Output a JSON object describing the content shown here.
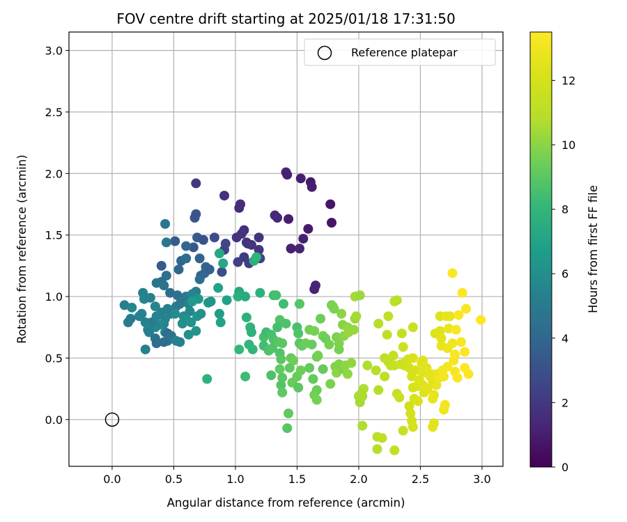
{
  "chart_data": {
    "type": "scatter",
    "title": "FOV centre drift starting at 2025/01/18 17:31:50",
    "xlabel": "Angular distance from reference (arcmin)",
    "ylabel": "Rotation from reference (arcmin)",
    "xlim": [
      -0.35,
      3.17
    ],
    "ylim": [
      -0.38,
      3.15
    ],
    "xticks": [
      "0.0",
      "0.5",
      "1.0",
      "1.5",
      "2.0",
      "2.5",
      "3.0"
    ],
    "yticks": [
      "0.0",
      "0.5",
      "1.0",
      "1.5",
      "2.0",
      "2.5",
      "3.0"
    ],
    "grid": true,
    "legend": {
      "placement": "top-right",
      "entries": [
        "Reference platepar"
      ]
    },
    "reference_point": {
      "x": 0.0,
      "y": 0.0
    },
    "colorbar": {
      "label": "Hours from first FF file",
      "range": [
        0,
        13.5
      ],
      "ticks": [
        "0",
        "2",
        "4",
        "6",
        "8",
        "10",
        "12"
      ],
      "colormap": "viridis"
    },
    "point_color_value": "hours",
    "points": [
      [
        1.41,
        2.01,
        1.2
      ],
      [
        1.42,
        1.99,
        1.1
      ],
      [
        1.53,
        1.96,
        1.0
      ],
      [
        1.61,
        1.93,
        0.9
      ],
      [
        1.62,
        1.89,
        1.0
      ],
      [
        1.77,
        1.75,
        0.7
      ],
      [
        1.78,
        1.6,
        0.7
      ],
      [
        1.43,
        1.63,
        1.0
      ],
      [
        1.59,
        1.55,
        0.9
      ],
      [
        1.55,
        1.47,
        1.1
      ],
      [
        1.45,
        1.39,
        1.1
      ],
      [
        1.52,
        1.39,
        1.2
      ],
      [
        1.65,
        1.09,
        1.3
      ],
      [
        1.64,
        1.06,
        1.2
      ],
      [
        1.32,
        1.66,
        1.4
      ],
      [
        1.34,
        1.64,
        1.4
      ],
      [
        1.03,
        1.72,
        1.5
      ],
      [
        1.04,
        1.75,
        1.6
      ],
      [
        1.07,
        1.54,
        1.6
      ],
      [
        1.05,
        1.51,
        1.7
      ],
      [
        1.01,
        1.48,
        1.8
      ],
      [
        1.09,
        1.44,
        1.9
      ],
      [
        1.19,
        1.48,
        1.8
      ],
      [
        1.1,
        1.43,
        1.7
      ],
      [
        1.13,
        1.42,
        1.9
      ],
      [
        1.19,
        1.38,
        2.0
      ],
      [
        1.07,
        1.32,
        2.1
      ],
      [
        1.02,
        1.28,
        2.3
      ],
      [
        1.11,
        1.27,
        2.2
      ],
      [
        1.2,
        1.31,
        2.4
      ],
      [
        0.91,
        1.82,
        1.7
      ],
      [
        0.68,
        1.92,
        2.0
      ],
      [
        0.92,
        1.43,
        2.6
      ],
      [
        0.91,
        1.38,
        2.5
      ],
      [
        0.83,
        1.48,
        2.9
      ],
      [
        0.89,
        1.2,
        2.9
      ],
      [
        0.68,
        1.67,
        3.3
      ],
      [
        0.67,
        1.64,
        3.2
      ],
      [
        0.69,
        1.48,
        3.6
      ],
      [
        0.51,
        1.45,
        3.5
      ],
      [
        0.74,
        1.46,
        3.1
      ],
      [
        0.66,
        1.4,
        3.3
      ],
      [
        0.6,
        1.41,
        4.1
      ],
      [
        0.56,
        1.29,
        3.9
      ],
      [
        0.71,
        1.31,
        3.8
      ],
      [
        0.6,
        1.31,
        4.3
      ],
      [
        0.54,
        1.22,
        4.0
      ],
      [
        0.76,
        1.24,
        3.9
      ],
      [
        0.72,
        1.17,
        3.6
      ],
      [
        0.71,
        1.14,
        4.4
      ],
      [
        0.75,
        1.19,
        4.1
      ],
      [
        0.79,
        1.22,
        3.7
      ],
      [
        0.43,
        1.59,
        4.8
      ],
      [
        0.44,
        1.44,
        4.9
      ],
      [
        0.4,
        1.25,
        3.4
      ],
      [
        0.44,
        1.17,
        4.4
      ],
      [
        0.4,
        1.12,
        4.3
      ],
      [
        0.42,
        1.09,
        4.6
      ],
      [
        0.36,
        1.11,
        4.6
      ],
      [
        0.47,
        1.03,
        4.4
      ],
      [
        0.53,
        1.01,
        4.5
      ],
      [
        0.6,
        1.0,
        4.7
      ],
      [
        0.63,
        1.0,
        5.1
      ],
      [
        0.68,
        1.04,
        5.2
      ],
      [
        0.65,
        1.02,
        5.4
      ],
      [
        0.56,
        0.96,
        4.9
      ],
      [
        0.52,
        0.92,
        5.1
      ],
      [
        0.55,
        0.94,
        4.9
      ],
      [
        0.62,
        0.94,
        5.2
      ],
      [
        0.63,
        0.88,
        5.6
      ],
      [
        0.48,
        0.86,
        5.2
      ],
      [
        0.4,
        0.87,
        5.3
      ],
      [
        0.45,
        0.9,
        5.3
      ],
      [
        0.43,
        0.82,
        5.4
      ],
      [
        0.36,
        0.84,
        5.5
      ],
      [
        0.42,
        0.78,
        5.5
      ],
      [
        0.38,
        0.77,
        5.7
      ],
      [
        0.35,
        0.75,
        5.6
      ],
      [
        0.43,
        0.71,
        5.4
      ],
      [
        0.45,
        0.7,
        4.2
      ],
      [
        0.48,
        0.68,
        4.6
      ],
      [
        0.45,
        0.64,
        4.8
      ],
      [
        0.52,
        0.64,
        5.4
      ],
      [
        0.55,
        0.63,
        5.3
      ],
      [
        0.35,
        0.66,
        4.5
      ],
      [
        0.36,
        0.62,
        4.3
      ],
      [
        0.42,
        0.63,
        4.3
      ],
      [
        0.27,
        0.57,
        5.3
      ],
      [
        0.32,
        0.79,
        5.1
      ],
      [
        0.27,
        0.79,
        5.3
      ],
      [
        0.29,
        0.73,
        5.5
      ],
      [
        0.3,
        0.71,
        5.2
      ],
      [
        0.22,
        0.84,
        5.3
      ],
      [
        0.24,
        0.86,
        5.4
      ],
      [
        0.13,
        0.79,
        5.1
      ],
      [
        0.15,
        0.82,
        5.1
      ],
      [
        0.1,
        0.93,
        5.2
      ],
      [
        0.16,
        0.91,
        5.6
      ],
      [
        0.25,
        1.03,
        5.4
      ],
      [
        0.26,
        0.98,
        5.5
      ],
      [
        0.31,
        0.99,
        5.3
      ],
      [
        0.35,
        0.92,
        5.6
      ],
      [
        0.51,
        0.86,
        5.9
      ],
      [
        0.58,
        0.84,
        5.9
      ],
      [
        0.6,
        0.82,
        6.1
      ],
      [
        0.57,
        0.78,
        6.0
      ],
      [
        0.64,
        0.79,
        6.2
      ],
      [
        0.69,
        0.84,
        6.3
      ],
      [
        0.72,
        0.86,
        6.1
      ],
      [
        0.62,
        0.69,
        6.1
      ],
      [
        0.68,
        0.72,
        6.3
      ],
      [
        0.7,
        0.98,
        6.4
      ],
      [
        0.65,
        0.96,
        6.5
      ],
      [
        0.78,
        0.95,
        6.4
      ],
      [
        0.8,
        0.96,
        6.3
      ],
      [
        0.87,
        0.86,
        6.7
      ],
      [
        0.88,
        0.79,
        7.0
      ],
      [
        0.93,
        0.97,
        6.9
      ],
      [
        0.86,
        1.07,
        7.0
      ],
      [
        0.9,
        1.27,
        7.2
      ],
      [
        0.87,
        1.35,
        7.3
      ],
      [
        1.03,
        1.04,
        7.3
      ],
      [
        1.02,
        1.0,
        7.6
      ],
      [
        1.08,
        1.0,
        7.4
      ],
      [
        0.77,
        0.33,
        7.8
      ],
      [
        1.09,
        0.83,
        7.7
      ],
      [
        1.12,
        0.75,
        7.9
      ],
      [
        1.13,
        0.71,
        7.8
      ],
      [
        1.11,
        0.61,
        8.0
      ],
      [
        1.14,
        0.57,
        8.0
      ],
      [
        1.03,
        0.57,
        8.1
      ],
      [
        1.08,
        0.35,
        8.3
      ],
      [
        1.15,
        1.29,
        7.6
      ],
      [
        1.17,
        1.32,
        7.9
      ],
      [
        1.2,
        1.03,
        7.7
      ],
      [
        1.23,
        0.67,
        8.5
      ],
      [
        1.25,
        0.71,
        8.3
      ],
      [
        1.29,
        0.69,
        8.6
      ],
      [
        1.23,
        0.6,
        8.4
      ],
      [
        1.27,
        0.56,
        8.7
      ],
      [
        1.31,
        0.65,
        8.6
      ],
      [
        1.3,
        0.58,
        8.8
      ],
      [
        1.29,
        0.36,
        8.7
      ],
      [
        1.31,
        1.01,
        8.3
      ],
      [
        1.33,
        1.01,
        8.5
      ],
      [
        1.36,
        0.81,
        8.8
      ],
      [
        1.41,
        0.78,
        8.7
      ],
      [
        1.34,
        0.75,
        8.5
      ],
      [
        1.35,
        0.63,
        8.9
      ],
      [
        1.38,
        0.62,
        9.0
      ],
      [
        1.36,
        0.54,
        8.8
      ],
      [
        1.37,
        0.49,
        9.0
      ],
      [
        1.36,
        0.41,
        9.2
      ],
      [
        1.38,
        0.34,
        9.0
      ],
      [
        1.37,
        0.28,
        8.9
      ],
      [
        1.38,
        0.22,
        9.1
      ],
      [
        1.39,
        0.94,
        8.4
      ],
      [
        1.44,
        0.42,
        9.1
      ],
      [
        1.45,
        0.5,
        9.2
      ],
      [
        1.47,
        0.48,
        9.4
      ],
      [
        1.43,
        0.05,
        9.1
      ],
      [
        1.42,
        -0.07,
        8.9
      ],
      [
        1.46,
        0.3,
        9.3
      ],
      [
        1.5,
        0.35,
        9.3
      ],
      [
        1.51,
        0.26,
        9.0
      ],
      [
        1.53,
        0.4,
        9.4
      ],
      [
        1.5,
        0.75,
        8.6
      ],
      [
        1.51,
        0.7,
        8.8
      ],
      [
        1.52,
        0.62,
        9.0
      ],
      [
        1.54,
        0.6,
        9.2
      ],
      [
        1.57,
        0.62,
        9.4
      ],
      [
        1.52,
        0.94,
        8.9
      ],
      [
        1.6,
        0.73,
        9.5
      ],
      [
        1.64,
        0.72,
        9.6
      ],
      [
        1.62,
        0.61,
        9.3
      ],
      [
        1.66,
        0.51,
        9.4
      ],
      [
        1.67,
        0.52,
        9.6
      ],
      [
        1.6,
        0.42,
        9.2
      ],
      [
        1.63,
        0.33,
        9.2
      ],
      [
        1.64,
        0.2,
        9.5
      ],
      [
        1.66,
        0.16,
        9.6
      ],
      [
        1.66,
        0.24,
        9.4
      ],
      [
        1.69,
        0.82,
        9.4
      ],
      [
        1.71,
        0.68,
        9.6
      ],
      [
        1.73,
        0.66,
        9.4
      ],
      [
        1.71,
        0.41,
        9.2
      ],
      [
        1.77,
        0.29,
        9.7
      ],
      [
        1.76,
        0.61,
        9.6
      ],
      [
        1.78,
        0.93,
        9.5
      ],
      [
        1.79,
        0.92,
        9.8
      ],
      [
        1.8,
        0.9,
        9.7
      ],
      [
        1.82,
        0.67,
        9.7
      ],
      [
        1.84,
        0.62,
        9.8
      ],
      [
        1.84,
        0.57,
        9.6
      ],
      [
        1.81,
        0.43,
        9.8
      ],
      [
        1.84,
        0.45,
        9.8
      ],
      [
        1.82,
        0.38,
        10.0
      ],
      [
        1.86,
        0.86,
        10.0
      ],
      [
        1.87,
        0.77,
        9.9
      ],
      [
        1.88,
        0.68,
        10.0
      ],
      [
        1.91,
        0.75,
        10.1
      ],
      [
        1.92,
        0.71,
        10.2
      ],
      [
        1.87,
        0.41,
        9.8
      ],
      [
        1.89,
        0.44,
        10.0
      ],
      [
        1.91,
        0.37,
        10.1
      ],
      [
        1.94,
        0.46,
        10.1
      ],
      [
        1.97,
        0.82,
        10.3
      ],
      [
        1.98,
        0.84,
        10.5
      ],
      [
        1.96,
        0.73,
        10.2
      ],
      [
        1.97,
        1.0,
        10.5
      ],
      [
        2.01,
        1.01,
        10.3
      ],
      [
        2.0,
        0.19,
        10.6
      ],
      [
        2.01,
        0.14,
        10.5
      ],
      [
        2.03,
        0.19,
        10.6
      ],
      [
        2.04,
        0.25,
        10.7
      ],
      [
        2.02,
        0.21,
        10.6
      ],
      [
        2.03,
        -0.05,
        10.7
      ],
      [
        2.07,
        0.44,
        10.7
      ],
      [
        2.14,
        0.4,
        10.9
      ],
      [
        2.16,
        0.78,
        10.9
      ],
      [
        2.16,
        0.24,
        10.8
      ],
      [
        2.15,
        -0.14,
        11.0
      ],
      [
        2.15,
        -0.24,
        10.9
      ],
      [
        2.19,
        -0.15,
        11.2
      ],
      [
        2.21,
        0.35,
        11.1
      ],
      [
        2.21,
        0.5,
        11.2
      ],
      [
        2.23,
        0.69,
        11.1
      ],
      [
        2.24,
        0.84,
        11.2
      ],
      [
        2.24,
        0.47,
        11.3
      ],
      [
        2.26,
        0.44,
        11.2
      ],
      [
        2.28,
        0.52,
        11.3
      ],
      [
        2.29,
        0.96,
        11.1
      ],
      [
        2.31,
        0.97,
        11.0
      ],
      [
        2.29,
        0.44,
        11.5
      ],
      [
        2.31,
        0.21,
        11.4
      ],
      [
        2.33,
        0.18,
        11.5
      ],
      [
        2.29,
        -0.25,
        11.3
      ],
      [
        2.34,
        0.45,
        11.6
      ],
      [
        2.35,
        0.7,
        11.3
      ],
      [
        2.36,
        0.59,
        11.7
      ],
      [
        2.37,
        0.44,
        11.7
      ],
      [
        2.38,
        0.47,
        11.6
      ],
      [
        2.36,
        -0.09,
        11.5
      ],
      [
        2.4,
        0.49,
        11.8
      ],
      [
        2.41,
        0.42,
        12.0
      ],
      [
        2.41,
        0.11,
        11.8
      ],
      [
        2.42,
        0.05,
        11.9
      ],
      [
        2.43,
        0.35,
        12.0
      ],
      [
        2.44,
        0.26,
        12.1
      ],
      [
        2.45,
        0.17,
        12.0
      ],
      [
        2.43,
        -0.01,
        11.9
      ],
      [
        2.44,
        -0.06,
        12.0
      ],
      [
        2.44,
        0.75,
        11.6
      ],
      [
        2.44,
        0.5,
        12.2
      ],
      [
        2.46,
        0.4,
        12.2
      ],
      [
        2.47,
        0.27,
        12.1
      ],
      [
        2.48,
        0.15,
        12.2
      ],
      [
        2.49,
        0.32,
        12.3
      ],
      [
        2.51,
        0.46,
        12.3
      ],
      [
        2.52,
        0.48,
        12.4
      ],
      [
        2.52,
        0.38,
        12.4
      ],
      [
        2.52,
        0.28,
        12.4
      ],
      [
        2.53,
        0.22,
        12.3
      ],
      [
        2.56,
        0.25,
        12.5
      ],
      [
        2.55,
        0.42,
        12.5
      ],
      [
        2.58,
        0.35,
        12.6
      ],
      [
        2.59,
        0.37,
        12.6
      ],
      [
        2.6,
        0.3,
        12.5
      ],
      [
        2.6,
        0.17,
        12.7
      ],
      [
        2.61,
        0.2,
        12.7
      ],
      [
        2.6,
        -0.06,
        12.6
      ],
      [
        2.61,
        -0.03,
        12.5
      ],
      [
        2.62,
        0.7,
        12.3
      ],
      [
        2.63,
        0.28,
        12.7
      ],
      [
        2.64,
        0.37,
        12.8
      ],
      [
        2.65,
        0.34,
        12.9
      ],
      [
        2.66,
        0.72,
        12.4
      ],
      [
        2.66,
        0.84,
        12.3
      ],
      [
        2.67,
        0.6,
        12.8
      ],
      [
        2.67,
        0.66,
        12.6
      ],
      [
        2.68,
        0.4,
        13.1
      ],
      [
        2.69,
        0.35,
        13.1
      ],
      [
        2.69,
        0.08,
        13.0
      ],
      [
        2.7,
        0.12,
        13.1
      ],
      [
        2.71,
        0.84,
        12.8
      ],
      [
        2.72,
        0.43,
        13.2
      ],
      [
        2.72,
        0.58,
        12.9
      ],
      [
        2.73,
        0.74,
        12.9
      ],
      [
        2.74,
        0.84,
        12.7
      ],
      [
        2.76,
        0.62,
        13.0
      ],
      [
        2.76,
        1.19,
        13.4
      ],
      [
        2.77,
        0.48,
        13.2
      ],
      [
        2.78,
        0.39,
        13.3
      ],
      [
        2.78,
        0.53,
        13.3
      ],
      [
        2.79,
        0.73,
        13.3
      ],
      [
        2.8,
        0.34,
        13.4
      ],
      [
        2.81,
        0.85,
        13.3
      ],
      [
        2.83,
        0.63,
        13.3
      ],
      [
        2.84,
        1.03,
        13.5
      ],
      [
        2.86,
        0.55,
        13.4
      ],
      [
        2.86,
        0.42,
        13.5
      ],
      [
        2.87,
        0.9,
        13.3
      ],
      [
        2.89,
        0.37,
        13.4
      ],
      [
        2.99,
        0.81,
        13.5
      ]
    ]
  }
}
